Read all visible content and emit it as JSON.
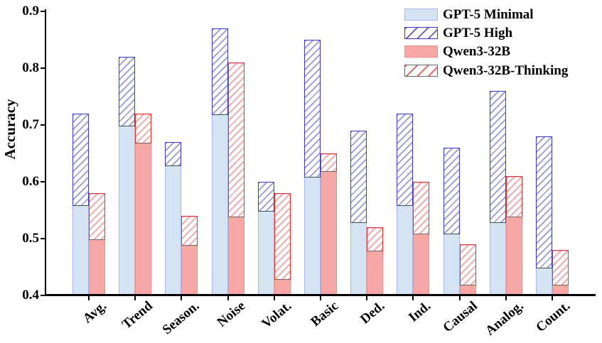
{
  "chart_data": {
    "type": "bar",
    "title": "",
    "xlabel": "",
    "ylabel": "Accuracy",
    "ylim": [
      0.4,
      0.9
    ],
    "yticks": [
      0.4,
      0.5,
      0.6,
      0.7,
      0.8,
      0.9
    ],
    "grid": false,
    "legend_position": "upper right",
    "bar_rendering": "Each category has a blue pair and a red pair: the 'High'/'Thinking' value is drawn as a hatched extension stacked above its paired solid bar.",
    "categories": [
      "Avg.",
      "Trend",
      "Season.",
      "Noise",
      "Volat.",
      "Basic",
      "Ded.",
      "Ind.",
      "Causal",
      "Analog.",
      "Count."
    ],
    "series": [
      {
        "name": "GPT-5 Minimal",
        "key": "minimal",
        "style": "solid-blue",
        "values": [
          0.56,
          0.7,
          0.63,
          0.72,
          0.55,
          0.61,
          0.53,
          0.56,
          0.51,
          0.53,
          0.45
        ]
      },
      {
        "name": "GPT-5 High",
        "key": "high",
        "style": "hatch-blue",
        "values": [
          0.72,
          0.82,
          0.67,
          0.87,
          0.6,
          0.85,
          0.69,
          0.72,
          0.66,
          0.76,
          0.68
        ]
      },
      {
        "name": "Qwen3-32B",
        "key": "qwen3",
        "style": "solid-red",
        "values": [
          0.5,
          0.67,
          0.49,
          0.54,
          0.43,
          0.62,
          0.48,
          0.51,
          0.42,
          0.54,
          0.42
        ]
      },
      {
        "name": "Qwen3-32B-Thinking",
        "key": "thinking",
        "style": "hatch-red",
        "values": [
          0.58,
          0.72,
          0.54,
          0.81,
          0.58,
          0.65,
          0.52,
          0.6,
          0.49,
          0.61,
          0.48
        ]
      }
    ],
    "colors": {
      "blue_fill": "#d5e4f2",
      "blue_edge_light": "#a9b8e8",
      "blue_edge_dark": "#3a3ecd",
      "red_fill": "#f5a8a5",
      "red_edge_light": "#ef8f8c",
      "red_edge_dark": "#ee2f2f",
      "axis": "#000000",
      "text": "#000000",
      "background": "#ffffff"
    }
  }
}
